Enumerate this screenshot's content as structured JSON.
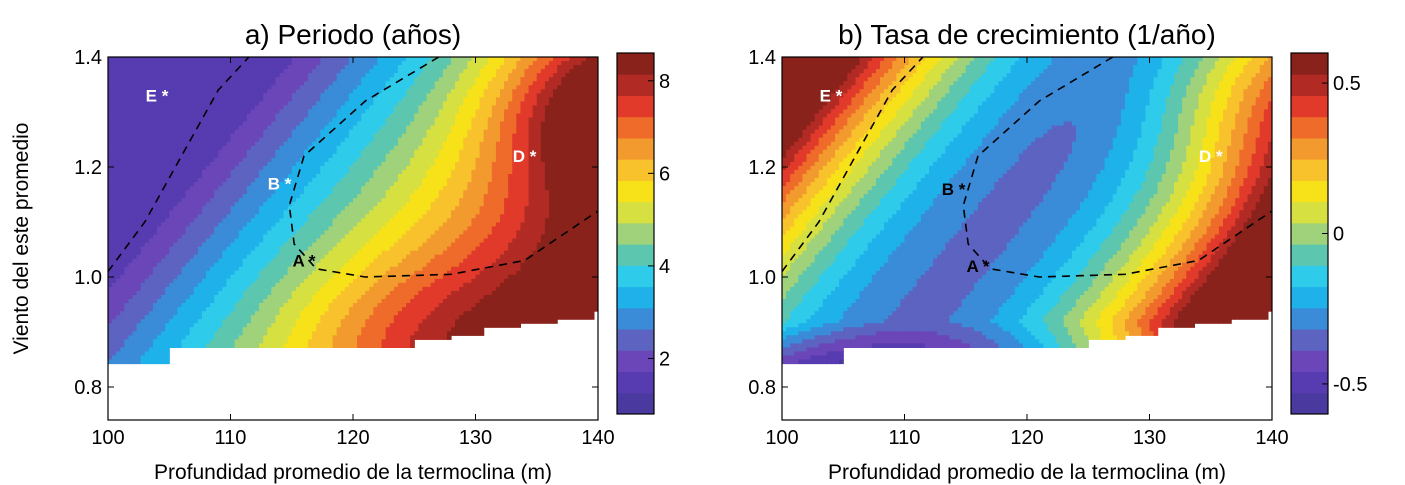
{
  "chart_data": [
    {
      "type": "heatmap",
      "title": "a) Periodo (años)",
      "xlabel": "Profundidad promedio de la termoclina (m)",
      "ylabel": "Viento del este promedio",
      "xlim": [
        100,
        140
      ],
      "ylim": [
        0.74,
        1.4
      ],
      "xticks": [
        "100",
        "110",
        "120",
        "130",
        "140"
      ],
      "yticks": [
        "0.8",
        "1.0",
        "1.2",
        "1.4"
      ],
      "colorbar": {
        "range": [
          0.8,
          8.6
        ],
        "levels": 16,
        "ticks": [
          "2",
          "4",
          "6",
          "8"
        ]
      },
      "points": [
        {
          "label": "E *",
          "x": 104,
          "y": 1.33,
          "color": "#ffffff"
        },
        {
          "label": "B *",
          "x": 114,
          "y": 1.17,
          "color": "#ffffff"
        },
        {
          "label": "A *",
          "x": 116,
          "y": 1.03,
          "color": "#000000"
        },
        {
          "label": "D *",
          "x": 134,
          "y": 1.22,
          "color": "#ffffff"
        }
      ]
    },
    {
      "type": "heatmap",
      "title": "b) Tasa de crecimiento (1/año)",
      "xlabel": "Profundidad promedio de la termoclina (m)",
      "ylabel": "",
      "xlim": [
        100,
        140
      ],
      "ylim": [
        0.74,
        1.4
      ],
      "xticks": [
        "100",
        "110",
        "120",
        "130",
        "140"
      ],
      "yticks": [
        "0.8",
        "1.0",
        "1.2",
        "1.4"
      ],
      "colorbar": {
        "range": [
          -0.6,
          0.6
        ],
        "levels": 16,
        "ticks": [
          "0.5",
          "0",
          "-0.5"
        ]
      },
      "points": [
        {
          "label": "E *",
          "x": 104,
          "y": 1.33,
          "color": "#ffffff"
        },
        {
          "label": "B *",
          "x": 114,
          "y": 1.16,
          "color": "#000000"
        },
        {
          "label": "A *",
          "x": 116,
          "y": 1.02,
          "color": "#000000"
        },
        {
          "label": "D *",
          "x": 135,
          "y": 1.22,
          "color": "#ffffff"
        }
      ]
    }
  ],
  "colormap": [
    "#4a3aa0",
    "#573bb0",
    "#6a46b8",
    "#5d63c0",
    "#3a8bd8",
    "#1fb2ea",
    "#2ecbea",
    "#5cc6ae",
    "#9fd27a",
    "#d6e040",
    "#f7e21a",
    "#f8c22c",
    "#f39a2e",
    "#ee6b2a",
    "#e23a2a",
    "#b22a24",
    "#8a221c"
  ]
}
